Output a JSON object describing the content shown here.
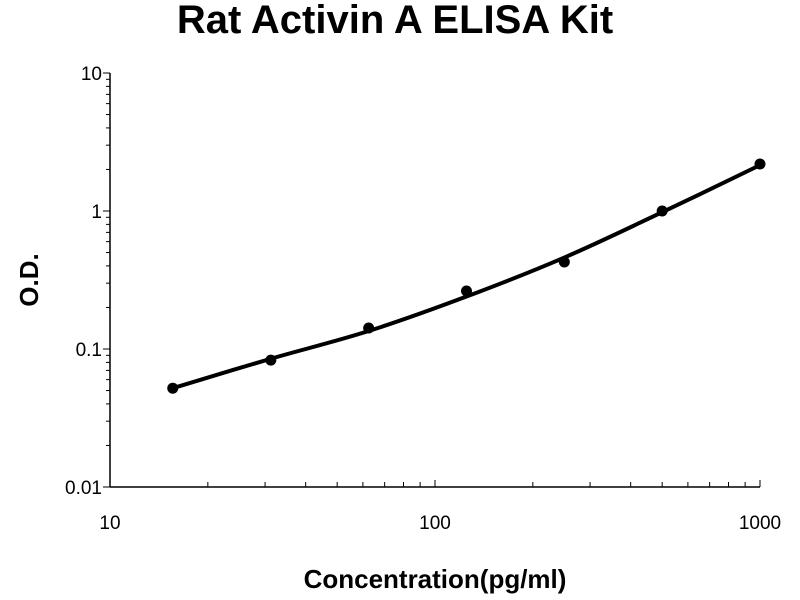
{
  "chart_data": {
    "type": "scatter",
    "title": "Rat Activin A ELISA Kit",
    "xlabel": "Concentration(pg/ml)",
    "ylabel": "O.D.",
    "x_scale": "log",
    "y_scale": "log",
    "xlim": [
      10,
      1000
    ],
    "ylim": [
      0.01,
      10
    ],
    "x_ticks": [
      "10",
      "100",
      "1000"
    ],
    "y_ticks": [
      "0.01",
      "0.1",
      "1",
      "10"
    ],
    "grid": false,
    "legend": "none",
    "series": [
      {
        "marker": "circle",
        "color": "#000000",
        "x": [
          15.6,
          31.25,
          62.5,
          125,
          250,
          500,
          1000
        ],
        "y": [
          0.052,
          0.083,
          0.142,
          0.263,
          0.427,
          1.0,
          2.19
        ]
      }
    ],
    "fit_curve": {
      "color": "#000000",
      "x": [
        15.6,
        31.25,
        62.5,
        125,
        250,
        500,
        1000
      ],
      "y": [
        0.052,
        0.085,
        0.135,
        0.24,
        0.46,
        0.98,
        2.15
      ]
    }
  }
}
